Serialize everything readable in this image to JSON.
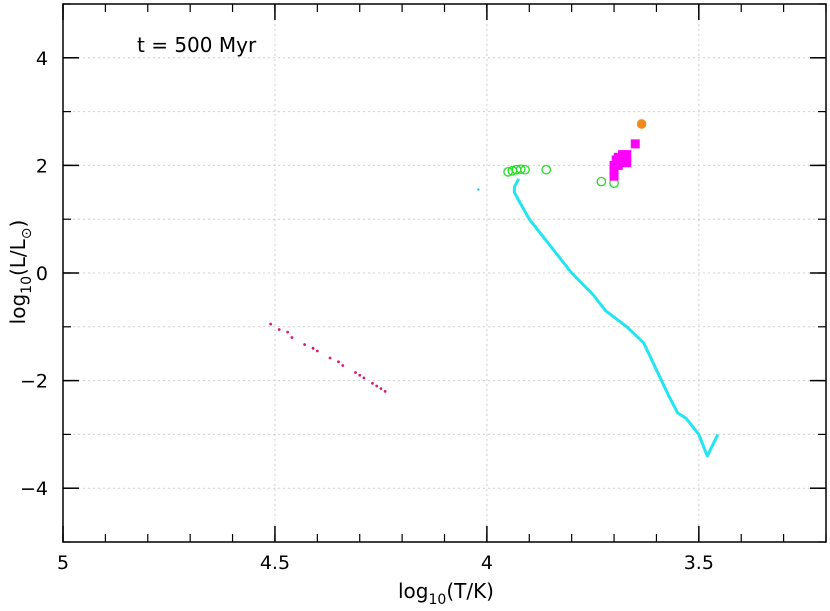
{
  "chart_data": {
    "type": "scatter",
    "annotation": "t = 500 Myr",
    "xlabel": {
      "base": "log",
      "sub": "10",
      "rest": "(T/K)"
    },
    "ylabel": {
      "base": "log",
      "sub": "10",
      "rest": "(L/L",
      "sun": "⊙",
      "close": ")"
    },
    "xlim": [
      5.0,
      3.2
    ],
    "ylim": [
      -5.0,
      5.0
    ],
    "x_ticks": [
      5.0,
      4.5,
      4.0,
      3.5
    ],
    "x_tick_labels": [
      "5",
      "4.5",
      "4",
      "3.5"
    ],
    "x_minor_step": 0.1,
    "y_ticks": [
      -4,
      -2,
      0,
      2,
      4
    ],
    "y_tick_labels": [
      "−4",
      "−2",
      "0",
      "2",
      "4"
    ],
    "y_minor_step": 1,
    "grid": true,
    "series": [
      {
        "marker": "line",
        "color": "#22e5f0",
        "x": [
          3.925,
          3.935,
          3.935,
          3.925,
          3.9,
          3.85,
          3.8,
          3.75,
          3.72,
          3.67,
          3.63,
          3.6,
          3.57,
          3.55,
          3.53,
          3.5,
          3.48,
          3.455
        ],
        "y": [
          1.75,
          1.6,
          1.5,
          1.35,
          1.0,
          0.5,
          0.0,
          -0.4,
          -0.7,
          -1.0,
          -1.3,
          -1.8,
          -2.3,
          -2.6,
          -2.7,
          -3.0,
          -3.4,
          -3.0
        ]
      },
      {
        "marker": "dot",
        "color": "#22c5e8",
        "x": [
          4.02
        ],
        "y": [
          1.55
        ]
      },
      {
        "marker": "smalldot",
        "color": "#e0157a",
        "x": [
          4.51,
          4.49,
          4.46,
          4.43,
          4.4,
          4.37,
          4.34,
          4.31,
          4.29,
          4.27,
          4.26,
          4.25,
          4.24,
          4.47,
          4.41,
          4.35,
          4.3
        ],
        "y": [
          -0.95,
          -1.05,
          -1.2,
          -1.33,
          -1.45,
          -1.58,
          -1.72,
          -1.85,
          -1.95,
          -2.05,
          -2.1,
          -2.15,
          -2.2,
          -1.1,
          -1.4,
          -1.65,
          -1.9
        ]
      },
      {
        "marker": "open-circle",
        "color": "#22dd22",
        "x": [
          3.95,
          3.94,
          3.93,
          3.92,
          3.91,
          3.86,
          3.73,
          3.7
        ],
        "y": [
          1.88,
          1.9,
          1.92,
          1.93,
          1.92,
          1.92,
          1.7,
          1.67
        ]
      },
      {
        "marker": "square",
        "color": "#ff00ff",
        "x": [
          3.7,
          3.7,
          3.7,
          3.695,
          3.69,
          3.69,
          3.68,
          3.68,
          3.67,
          3.67,
          3.65
        ],
        "y": [
          1.8,
          1.9,
          2.0,
          2.1,
          2.15,
          2.0,
          2.2,
          2.1,
          2.05,
          2.2,
          2.4
        ]
      },
      {
        "marker": "filled-circle",
        "color": "#f08a1c",
        "x": [
          3.635
        ],
        "y": [
          2.77
        ]
      }
    ]
  }
}
